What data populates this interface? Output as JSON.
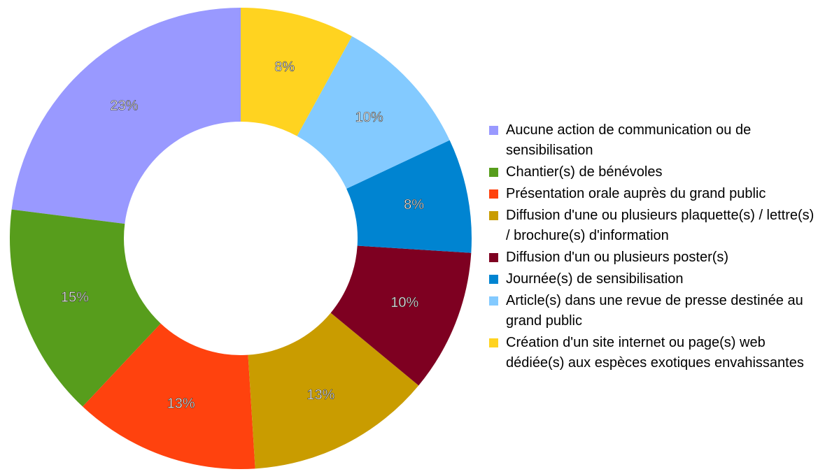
{
  "chart_data": {
    "type": "donut",
    "categories": [
      "Aucune action de communication ou de sensibilisation",
      "Chantier(s) de bénévoles",
      "Présentation orale auprès du grand public",
      "Diffusion d'une ou plusieurs plaquette(s) / lettre(s) / brochure(s) d'information",
      "Diffusion d'un ou plusieurs poster(s)",
      "Journée(s) de sensibilisation",
      "Article(s) dans une revue de presse destinée au grand public",
      "Création d'un site internet ou page(s) web dédiée(s) aux espèces exotiques envahissantes"
    ],
    "values": [
      23,
      15,
      13,
      13,
      10,
      8,
      10,
      8
    ],
    "value_labels": [
      "23%",
      "15%",
      "13%",
      "13%",
      "10%",
      "8%",
      "10%",
      "8%"
    ],
    "colors": [
      "#9999ff",
      "#579d1c",
      "#ff420e",
      "#c99c00",
      "#7e0021",
      "#0084d1",
      "#83caff",
      "#ffd320"
    ],
    "legend": "right"
  }
}
